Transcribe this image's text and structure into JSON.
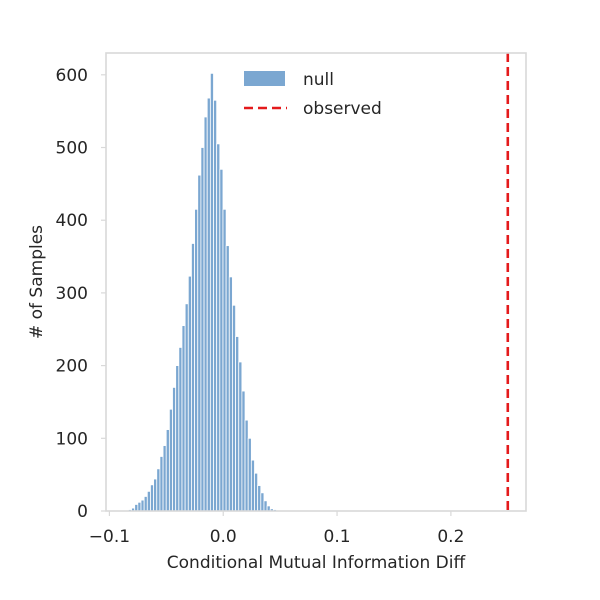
{
  "chart_data": {
    "type": "bar",
    "title": "",
    "xlabel": "Conditional Mutual Information Diff",
    "ylabel": "# of Samples",
    "xlim": [
      -0.103,
      0.266
    ],
    "ylim": [
      0,
      630
    ],
    "grid": false,
    "x_ticks": [
      -0.1,
      0.0,
      0.1,
      0.2
    ],
    "x_tick_labels": [
      "−0.1",
      "0.0",
      "0.1",
      "0.2"
    ],
    "y_ticks": [
      0,
      100,
      200,
      300,
      400,
      500,
      600
    ],
    "y_tick_labels": [
      "0",
      "100",
      "200",
      "300",
      "400",
      "500",
      "600"
    ],
    "legend_position": "top-center",
    "bin_width": 0.00277,
    "series": [
      {
        "name": "null",
        "kind": "histogram",
        "color": "#7ba7d1",
        "edge_color": "#ffffff",
        "bin_start": -0.0861,
        "counts": [
          1,
          2,
          4,
          9,
          12,
          15,
          20,
          27,
          36,
          44,
          58,
          75,
          90,
          112,
          140,
          170,
          200,
          225,
          255,
          285,
          323,
          368,
          415,
          462,
          500,
          542,
          568,
          602,
          565,
          505,
          470,
          415,
          365,
          322,
          283,
          240,
          205,
          165,
          125,
          100,
          70,
          52,
          35,
          25,
          14,
          7,
          3,
          2,
          1,
          1
        ]
      },
      {
        "name": "observed",
        "kind": "vline",
        "color": "#e41a1c",
        "x": 0.25,
        "line_style": "dashed"
      }
    ]
  }
}
